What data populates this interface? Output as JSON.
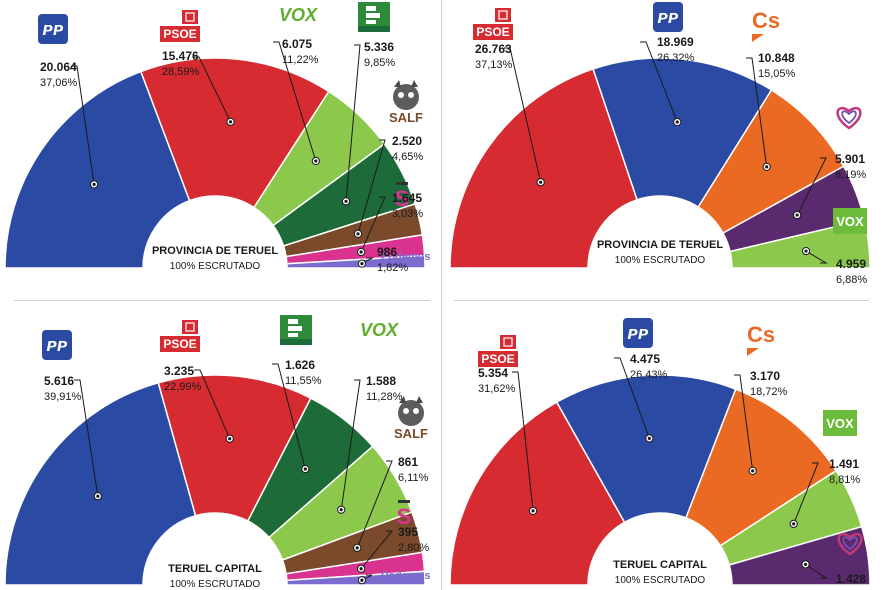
{
  "colors": {
    "PP": "#2b4aa3",
    "PSOE": "#d52b31",
    "VOX": "#8cc84b",
    "Teruel Existe": "#1e6b3a",
    "SALF": "#7a4a2a",
    "Sumar": "#d9328f",
    "Podemos": "#7a6ccf",
    "Cs": "#ea6a24",
    "Corazones": "#5a2a6e"
  },
  "chart_data": [
    {
      "type": "pie",
      "subtype": "parliament-semicircle",
      "title": "PROVINCIA DE TERUEL",
      "subtitle": "100% ESCRUTADO",
      "series": [
        {
          "name": "PP",
          "logo": "pp",
          "votes": "20.064",
          "pct": "37,06%",
          "value": 37.06
        },
        {
          "name": "PSOE",
          "logo": "psoe",
          "votes": "15.476",
          "pct": "28,59%",
          "value": 28.59
        },
        {
          "name": "VOX",
          "logo": "vox",
          "votes": "6.075",
          "pct": "11,22%",
          "value": 11.22
        },
        {
          "name": "Teruel Existe",
          "logo": "te",
          "votes": "5.336",
          "pct": "9,85%",
          "value": 9.85
        },
        {
          "name": "SALF",
          "logo": "salf",
          "votes": "2.520",
          "pct": "4,65%",
          "value": 4.65
        },
        {
          "name": "Sumar",
          "logo": "sumar",
          "votes": "1.645",
          "pct": "3,03%",
          "value": 3.03
        },
        {
          "name": "Podemos",
          "logo": "podemos",
          "votes": "986",
          "pct": "1,82%",
          "value": 1.82
        }
      ]
    },
    {
      "type": "pie",
      "subtype": "parliament-semicircle",
      "title": "PROVINCIA DE TERUEL",
      "subtitle": "100% ESCRUTADO",
      "series": [
        {
          "name": "PSOE",
          "logo": "psoe",
          "votes": "26.763",
          "pct": "37,13%",
          "value": 37.13
        },
        {
          "name": "PP",
          "logo": "pp",
          "votes": "18.969",
          "pct": "26,32%",
          "value": 26.32
        },
        {
          "name": "Cs",
          "logo": "cs",
          "votes": "10.848",
          "pct": "15,05%",
          "value": 15.05
        },
        {
          "name": "Corazones",
          "logo": "heart",
          "votes": "5.901",
          "pct": "8,19%",
          "value": 8.19
        },
        {
          "name": "VOX",
          "logo": "voxbox",
          "votes": "4.959",
          "pct": "6,88%",
          "value": 6.88
        }
      ]
    },
    {
      "type": "pie",
      "subtype": "parliament-semicircle",
      "title": "TERUEL CAPITAL",
      "subtitle": "100% ESCRUTADO",
      "series": [
        {
          "name": "PP",
          "logo": "pp",
          "votes": "5.616",
          "pct": "39,91%",
          "value": 39.91
        },
        {
          "name": "PSOE",
          "logo": "psoe",
          "votes": "3.235",
          "pct": "22,99%",
          "value": 22.99
        },
        {
          "name": "Teruel Existe",
          "logo": "te",
          "votes": "1.626",
          "pct": "11,55%",
          "value": 11.55
        },
        {
          "name": "VOX",
          "logo": "vox",
          "votes": "1.588",
          "pct": "11,28%",
          "value": 11.28
        },
        {
          "name": "SALF",
          "logo": "salf",
          "votes": "861",
          "pct": "6,11%",
          "value": 6.11
        },
        {
          "name": "Sumar",
          "logo": "sumar",
          "votes": "395",
          "pct": "2,80%",
          "value": 2.8
        },
        {
          "name": "Podemos",
          "logo": "podemos",
          "votes": "",
          "pct": "",
          "value": 2.0
        }
      ]
    },
    {
      "type": "pie",
      "subtype": "parliament-semicircle",
      "title": "TERUEL CAPITAL",
      "subtitle": "100% ESCRUTADO",
      "series": [
        {
          "name": "PSOE",
          "logo": "psoe",
          "votes": "5.354",
          "pct": "31,62%",
          "value": 31.62
        },
        {
          "name": "PP",
          "logo": "pp",
          "votes": "4.475",
          "pct": "26,43%",
          "value": 26.43
        },
        {
          "name": "Cs",
          "logo": "cs",
          "votes": "3.170",
          "pct": "18,72%",
          "value": 18.72
        },
        {
          "name": "VOX",
          "logo": "voxbox",
          "votes": "1.491",
          "pct": "8,81%",
          "value": 8.81
        },
        {
          "name": "Corazones",
          "logo": "heart",
          "votes": "1.428",
          "pct": "",
          "value": 8.43
        }
      ]
    }
  ]
}
